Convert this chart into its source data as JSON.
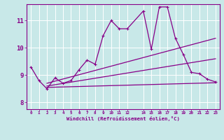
{
  "title": "",
  "xlabel": "Windchill (Refroidissement éolien,°C)",
  "background_color": "#c8e8e8",
  "grid_color": "#ffffff",
  "line_color": "#880088",
  "xlabel_color": "#880088",
  "spine_color": "#880088",
  "xlim": [
    -0.5,
    23.5
  ],
  "ylim": [
    7.75,
    11.6
  ],
  "yticks": [
    8,
    9,
    10,
    11
  ],
  "xtick_positions": [
    0,
    1,
    2,
    3,
    4,
    5,
    6,
    7,
    8,
    9,
    10,
    11,
    12,
    14,
    15,
    16,
    17,
    18,
    19,
    20,
    21,
    22,
    23
  ],
  "xtick_labels": [
    "0",
    "1",
    "2",
    "3",
    "4",
    "5",
    "6",
    "7",
    "8",
    "9",
    "10",
    "11",
    "12",
    "14",
    "15",
    "16",
    "17",
    "18",
    "19",
    "20",
    "21",
    "22",
    "23"
  ],
  "main_line": {
    "x": [
      0,
      1,
      2,
      3,
      4,
      5,
      6,
      7,
      8,
      9,
      10,
      11,
      12,
      14,
      15,
      16,
      17,
      18,
      19,
      20,
      21,
      22,
      23
    ],
    "y": [
      9.3,
      8.8,
      8.5,
      8.9,
      8.7,
      8.8,
      9.2,
      9.55,
      9.4,
      10.45,
      11.0,
      10.7,
      10.7,
      11.35,
      9.95,
      11.5,
      11.5,
      10.35,
      9.75,
      9.1,
      9.05,
      8.85,
      8.75
    ]
  },
  "straight_lines": [
    {
      "x": [
        2,
        23
      ],
      "y": [
        8.55,
        8.72
      ]
    },
    {
      "x": [
        2,
        23
      ],
      "y": [
        8.6,
        9.6
      ]
    },
    {
      "x": [
        2,
        23
      ],
      "y": [
        8.7,
        10.35
      ]
    }
  ]
}
